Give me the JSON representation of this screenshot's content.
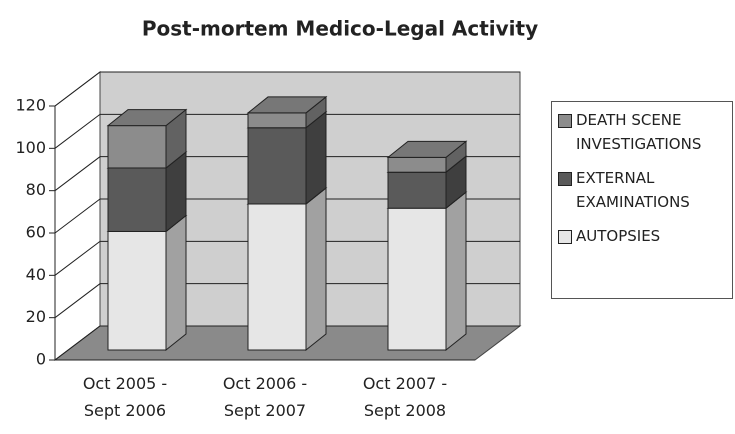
{
  "chart_data": {
    "type": "bar3d_stacked",
    "title": "Post-mortem Medico-Legal Activity",
    "categories": [
      "Oct 2005 - Sept 2006",
      "Oct 2006 - Sept 2007",
      "Oct 2007 - Sept 2008"
    ],
    "series": [
      {
        "name": "AUTOPSIES",
        "color": "#e6e6e6",
        "values": [
          56,
          69,
          67
        ]
      },
      {
        "name": "EXTERNAL EXAMINATIONS",
        "color": "#5a5a5a",
        "values": [
          30,
          36,
          17
        ]
      },
      {
        "name": "DEATH SCENE INVESTIGATIONS",
        "color": "#8c8c8c",
        "values": [
          20,
          7,
          7
        ]
      }
    ],
    "ylim": [
      0,
      120
    ],
    "yticks": [
      0,
      20,
      40,
      60,
      80,
      100,
      120
    ],
    "grid": true,
    "legend": "right"
  }
}
